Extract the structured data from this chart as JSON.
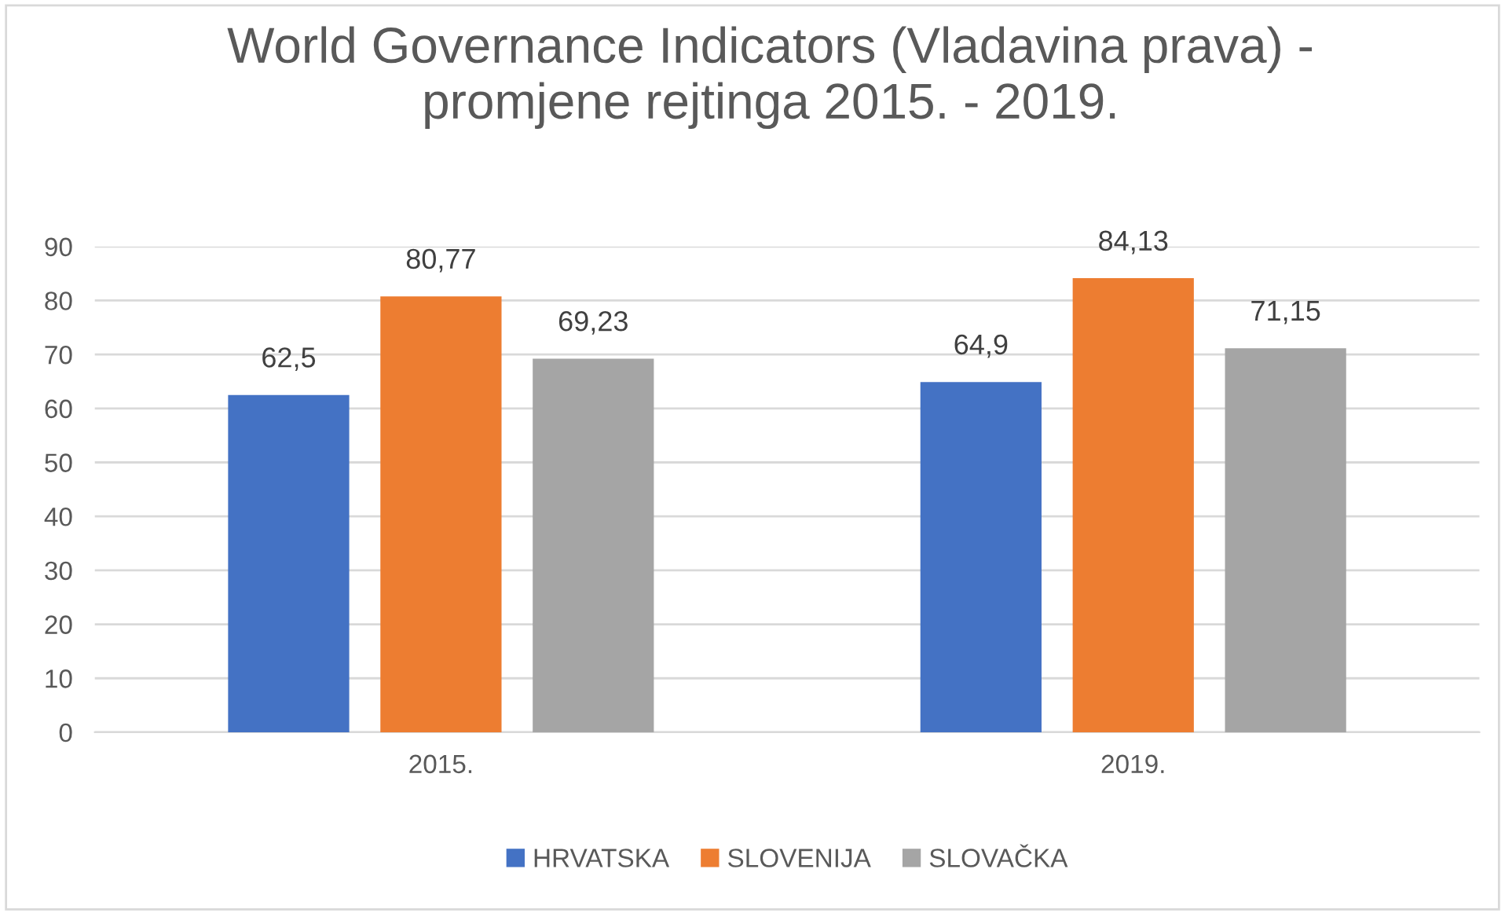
{
  "chart_data": {
    "type": "bar",
    "title": "World Governance Indicators (Vladavina prava) -\npromjene rejtinga 2015. - 2019.",
    "categories": [
      "2015.",
      "2019."
    ],
    "series": [
      {
        "name": "HRVATSKA",
        "color": "#4472c4",
        "values": [
          62.5,
          64.9
        ],
        "value_labels": [
          "62,5",
          "64,9"
        ]
      },
      {
        "name": "SLOVENIJA",
        "color": "#ed7d31",
        "values": [
          80.77,
          84.13
        ],
        "value_labels": [
          "80,77",
          "84,13"
        ]
      },
      {
        "name": "SLOVAČKA",
        "color": "#a5a5a5",
        "values": [
          69.23,
          71.15
        ],
        "value_labels": [
          "69,23",
          "71,15"
        ]
      }
    ],
    "ylim": [
      0,
      90
    ],
    "yticks": [
      0,
      10,
      20,
      30,
      40,
      50,
      60,
      70,
      80,
      90
    ],
    "grid": "y",
    "legend": "bottom"
  }
}
